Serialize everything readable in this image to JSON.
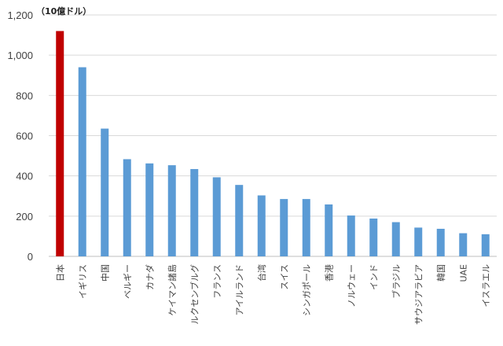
{
  "chart_data": {
    "type": "bar",
    "unit_label": "（10億ドル）",
    "categories": [
      "日本",
      "イギリス",
      "中国",
      "ベルギー",
      "カナダ",
      "ケイマン諸島",
      "ルクセンブルグ",
      "フランス",
      "アイルランド",
      "台湾",
      "スイス",
      "シンガポール",
      "香港",
      "ノルウェー",
      "インド",
      "ブラジル",
      "サウジアラビア",
      "韓国",
      "UAE",
      "イスラエル"
    ],
    "values": [
      1120,
      940,
      635,
      483,
      462,
      453,
      434,
      393,
      355,
      303,
      285,
      285,
      258,
      203,
      188,
      170,
      143,
      137,
      115,
      110
    ],
    "yticks": [
      "0",
      "200",
      "400",
      "600",
      "800",
      "1,000",
      "1,200"
    ],
    "ylim": [
      0,
      1200
    ],
    "grid": true,
    "legend": "none",
    "colors": {
      "highlight": "#c00000",
      "bar": "#5b9bd5"
    },
    "highlight_index": 0
  }
}
